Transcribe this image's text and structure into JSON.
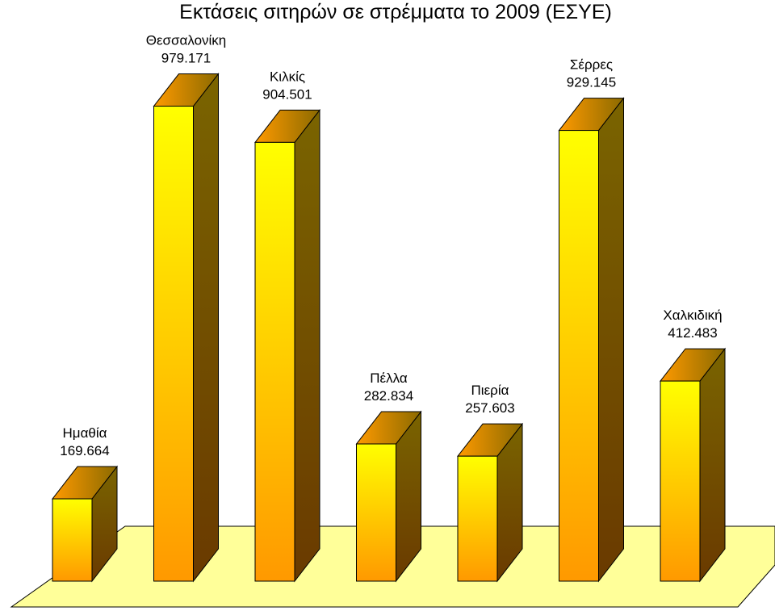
{
  "chart_data": {
    "type": "bar",
    "title": "Εκτάσεις σιτηρών σε στρέμματα το 2009 (ΕΣΥΕ)",
    "categories": [
      "Ημαθία",
      "Θεσσαλονίκη",
      "Κιλκίς",
      "Πέλλα",
      "Πιερία",
      "Σέρρες",
      "Χαλκιδική"
    ],
    "values": [
      169664,
      979171,
      904501,
      282834,
      257603,
      929145,
      412483
    ],
    "value_labels": [
      "169.664",
      "979.171",
      "904.501",
      "282.834",
      "257.603",
      "929.145",
      "412.483"
    ],
    "xlabel": "",
    "ylabel": "",
    "ylim": [
      0,
      1050000
    ],
    "grid": false,
    "legend": "none",
    "style": "3d-column",
    "colors": {
      "front_top": "#ffff00",
      "front_bottom": "#ff9900",
      "top_face_light": "#ff9a00",
      "top_face_dark": "#8b6a00",
      "side_light": "#7a6400",
      "side_dark": "#6a3a00",
      "floor": "#ffff99",
      "outline": "#000000"
    }
  }
}
